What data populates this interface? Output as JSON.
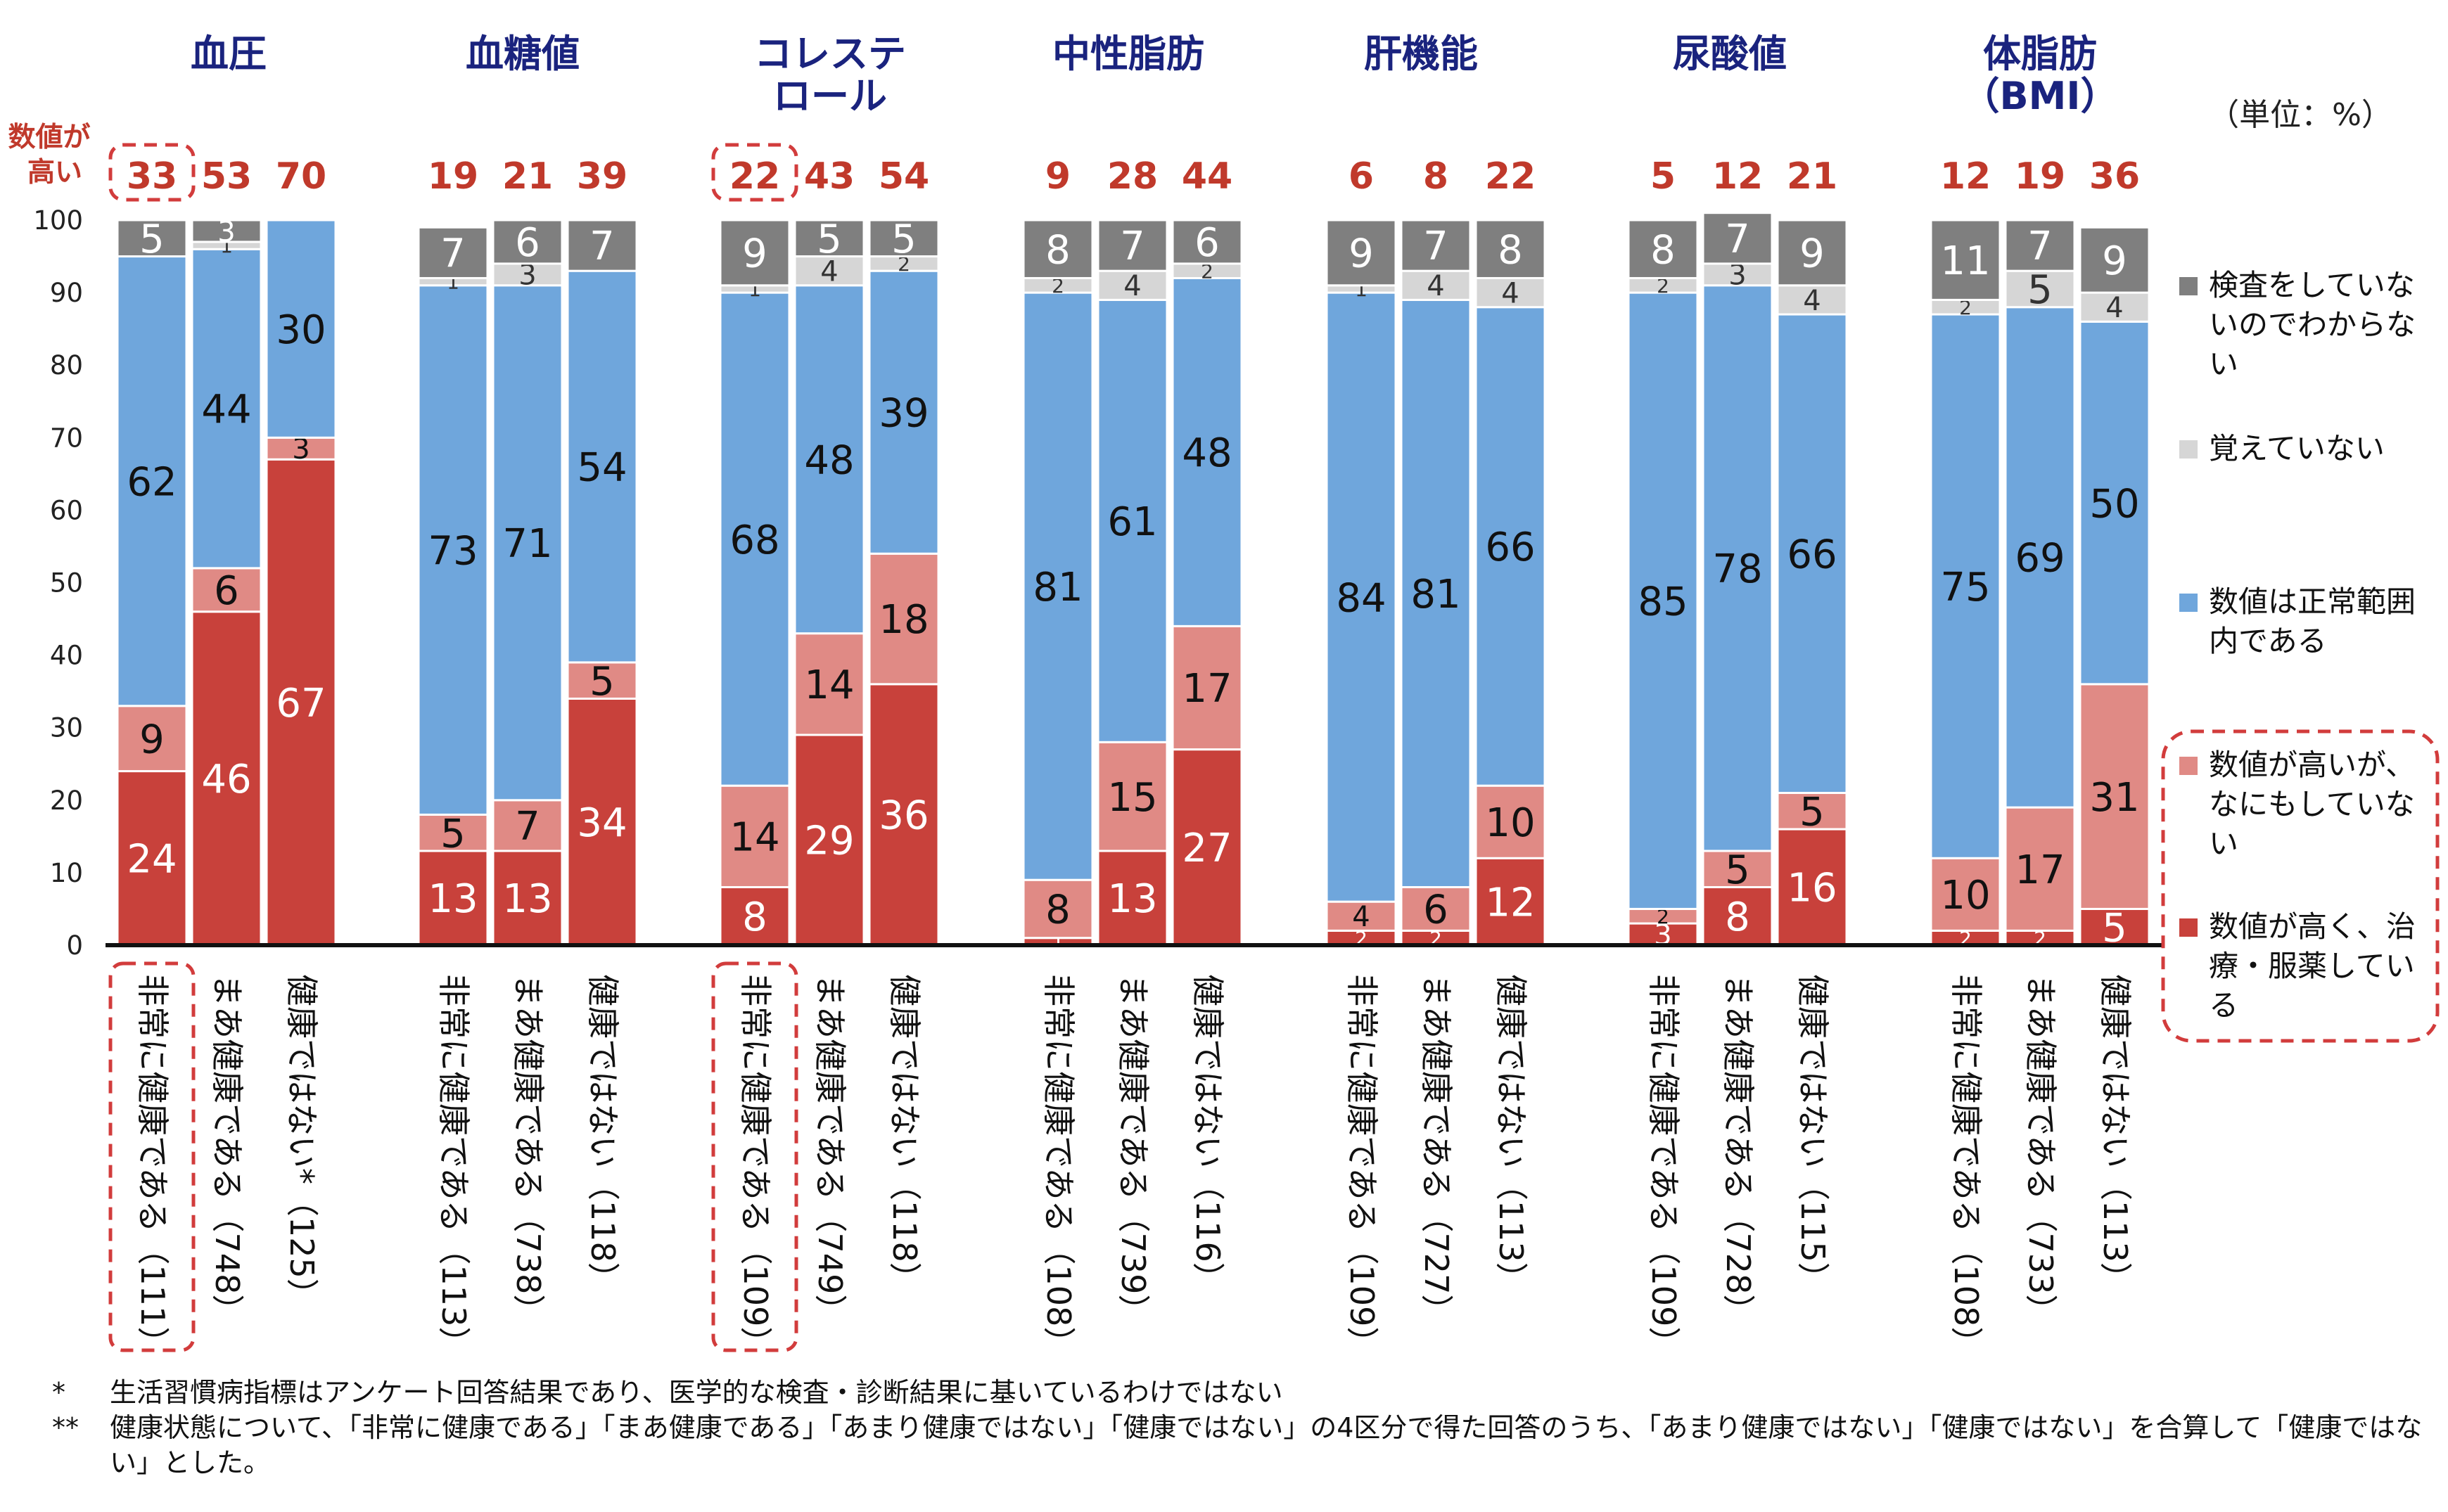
{
  "chart_data": {
    "type": "bar",
    "stacked": true,
    "unit_label": "（単位：%）",
    "high_label_line1": "数値が",
    "high_label_line2": "高い",
    "yticks": [
      "0",
      "10",
      "20",
      "30",
      "40",
      "50",
      "60",
      "70",
      "80",
      "90",
      "100"
    ],
    "ylim": [
      0,
      100
    ],
    "series": [
      {
        "key": "treated",
        "name": "数値が高く、治療・服薬している",
        "color": "#c8413b"
      },
      {
        "key": "untreated",
        "name": "数値が高いが、なにもしていない",
        "color": "#e08a85"
      },
      {
        "key": "normal",
        "name": "数値は正常範囲内である",
        "color": "#6fa6dc"
      },
      {
        "key": "forgot",
        "name": "覚えていない",
        "color": "#d6d6d6"
      },
      {
        "key": "not_tested",
        "name": "検査をしていないのでわからない",
        "color": "#7f7f7f"
      }
    ],
    "legend": [
      {
        "series": "not_tested",
        "lines": [
          "検査をしていな",
          "いのでわからな",
          "い"
        ]
      },
      {
        "series": "forgot",
        "lines": [
          "覚えていない"
        ]
      },
      {
        "series": "normal",
        "lines": [
          "数値は正常範囲",
          "内である"
        ]
      },
      {
        "series": "untreated",
        "lines": [
          "数値が高いが、",
          "なにもしていな",
          "い"
        ]
      },
      {
        "series": "treated",
        "lines": [
          "数値が高く、治",
          "療・服薬してい",
          "る"
        ]
      }
    ],
    "groups": [
      {
        "title_lines": [
          "血圧"
        ],
        "bars": [
          {
            "category": "非常に健康である（111）",
            "high": "33",
            "highlight": true,
            "values": [
              24,
              9,
              62,
              0,
              5
            ],
            "labels": [
              "24",
              "9",
              "62",
              "",
              "5"
            ]
          },
          {
            "category": "まあ健康である（748）",
            "high": "53",
            "highlight": false,
            "values": [
              46,
              6,
              44,
              1,
              3
            ],
            "labels": [
              "46",
              "6",
              "44",
              "1",
              "3"
            ]
          },
          {
            "category": "健康ではない*（125）",
            "high": "70",
            "highlight": false,
            "values": [
              67,
              3,
              30,
              0,
              0
            ],
            "labels": [
              "67",
              "3",
              "30",
              "",
              ""
            ]
          }
        ]
      },
      {
        "title_lines": [
          "血糖値"
        ],
        "bars": [
          {
            "category": "非常に健康である（113）",
            "high": "19",
            "highlight": false,
            "values": [
              13,
              5,
              73,
              1,
              7
            ],
            "labels": [
              "13",
              "5",
              "73",
              "1",
              "7"
            ]
          },
          {
            "category": "まあ健康である（738）",
            "high": "21",
            "highlight": false,
            "values": [
              13,
              7,
              71,
              3,
              6
            ],
            "labels": [
              "13",
              "7",
              "71",
              "3",
              "6"
            ]
          },
          {
            "category": "健康ではない（118）",
            "high": "39",
            "highlight": false,
            "values": [
              34,
              5,
              54,
              0,
              7
            ],
            "labels": [
              "34",
              "5",
              "54",
              "",
              "7"
            ]
          }
        ]
      },
      {
        "title_lines": [
          "コレステ",
          "ロール"
        ],
        "bars": [
          {
            "category": "非常に健康である（109）",
            "high": "22",
            "highlight": true,
            "values": [
              8,
              14,
              68,
              1,
              9
            ],
            "labels": [
              "8",
              "14",
              "68",
              "1",
              "9"
            ]
          },
          {
            "category": "まあ健康である（749）",
            "high": "43",
            "highlight": false,
            "values": [
              29,
              14,
              48,
              4,
              5
            ],
            "labels": [
              "29",
              "14",
              "48",
              "4",
              "5"
            ]
          },
          {
            "category": "健康ではない（118）",
            "high": "54",
            "highlight": false,
            "values": [
              36,
              18,
              39,
              2,
              5
            ],
            "labels": [
              "36",
              "18",
              "39",
              "2",
              "5"
            ]
          }
        ]
      },
      {
        "title_lines": [
          "中性脂肪"
        ],
        "bars": [
          {
            "category": "非常に健康である（108）",
            "high": "9",
            "highlight": false,
            "values": [
              1,
              8,
              81,
              2,
              8
            ],
            "labels": [
              "1",
              "8",
              "81",
              "2",
              "8"
            ]
          },
          {
            "category": "まあ健康である（739）",
            "high": "28",
            "highlight": false,
            "values": [
              13,
              15,
              61,
              4,
              7
            ],
            "labels": [
              "13",
              "15",
              "61",
              "4",
              "7"
            ]
          },
          {
            "category": "健康ではない（116）",
            "high": "44",
            "highlight": false,
            "values": [
              27,
              17,
              48,
              2,
              6
            ],
            "labels": [
              "27",
              "17",
              "48",
              "2",
              "6"
            ]
          }
        ]
      },
      {
        "title_lines": [
          "肝機能"
        ],
        "bars": [
          {
            "category": "非常に健康である（109）",
            "high": "6",
            "highlight": false,
            "values": [
              2,
              4,
              84,
              1,
              9
            ],
            "labels": [
              "2",
              "4",
              "84",
              "1",
              "9"
            ]
          },
          {
            "category": "まあ健康である（727）",
            "high": "8",
            "highlight": false,
            "values": [
              2,
              6,
              81,
              4,
              7
            ],
            "labels": [
              "2",
              "6",
              "81",
              "4",
              "7"
            ]
          },
          {
            "category": "健康ではない（113）",
            "high": "22",
            "highlight": false,
            "values": [
              12,
              10,
              66,
              4,
              8
            ],
            "labels": [
              "12",
              "10",
              "66",
              "4",
              "8"
            ]
          }
        ]
      },
      {
        "title_lines": [
          "尿酸値"
        ],
        "bars": [
          {
            "category": "非常に健康である（109）",
            "high": "5",
            "highlight": false,
            "values": [
              3,
              2,
              85,
              2,
              8
            ],
            "labels": [
              "3",
              "2",
              "85",
              "2",
              "8"
            ]
          },
          {
            "category": "まあ健康である（728）",
            "high": "12",
            "highlight": false,
            "values": [
              8,
              5,
              78,
              3,
              7
            ],
            "labels": [
              "8",
              "5",
              "78",
              "3",
              "7"
            ]
          },
          {
            "category": "健康ではない（115）",
            "high": "21",
            "highlight": false,
            "values": [
              16,
              5,
              66,
              4,
              9
            ],
            "labels": [
              "16",
              "5",
              "66",
              "4",
              "9"
            ]
          }
        ]
      },
      {
        "title_lines": [
          "体脂肪",
          "（BMI）"
        ],
        "bars": [
          {
            "category": "非常に健康である（108）",
            "high": "12",
            "highlight": false,
            "values": [
              2,
              10,
              75,
              2,
              11
            ],
            "labels": [
              "2",
              "10",
              "75",
              "2",
              "11"
            ]
          },
          {
            "category": "まあ健康である（733）",
            "high": "19",
            "highlight": false,
            "values": [
              2,
              17,
              69,
              5,
              7
            ],
            "labels": [
              "2",
              "17",
              "69",
              "5",
              "7"
            ]
          },
          {
            "category": "健康ではない（113）",
            "high": "36",
            "highlight": false,
            "values": [
              5,
              31,
              50,
              4,
              9
            ],
            "labels": [
              "5",
              "31",
              "50",
              "4",
              "9"
            ]
          }
        ]
      }
    ]
  },
  "footnotes": [
    {
      "mark": "*",
      "text": "生活習慣病指標はアンケート回答結果であり、医学的な検査・診断結果に基いているわけではない"
    },
    {
      "mark": "**",
      "text": "健康状態について、「非常に健康である」「まあ健康である」「あまり健康ではない」「健康ではない」の4区分で得た回答のうち、「あまり健康ではない」「健康ではない」を合算して「健康ではない」とした。"
    }
  ]
}
